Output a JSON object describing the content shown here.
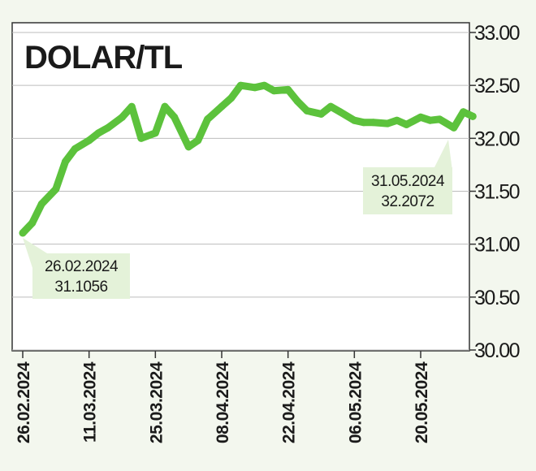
{
  "chart_data": {
    "type": "line",
    "title": "DOLAR/TL",
    "xlabel": "",
    "ylabel": "",
    "ylim": [
      30.0,
      33.0
    ],
    "yticks": [
      "33.00",
      "32.50",
      "32.00",
      "31.50",
      "31.00",
      "30.50",
      "30.00"
    ],
    "xticks": [
      "26.02.2024",
      "11.03.2024",
      "25.03.2024",
      "08.04.2024",
      "22.04.2024",
      "06.05.2024",
      "20.05.2024"
    ],
    "grid": true,
    "line_color": "#5cc23c",
    "series": [
      {
        "x": [
          "26.02.2024",
          "28.02.2024",
          "01.03.2024",
          "04.03.2024",
          "06.03.2024",
          "08.03.2024",
          "11.03.2024",
          "13.03.2024",
          "15.03.2024",
          "18.03.2024",
          "20.03.2024",
          "22.03.2024",
          "25.03.2024",
          "27.03.2024",
          "29.03.2024",
          "01.04.2024",
          "03.04.2024",
          "05.04.2024",
          "08.04.2024",
          "10.04.2024",
          "12.04.2024",
          "15.04.2024",
          "17.04.2024",
          "19.04.2024",
          "22.04.2024",
          "24.04.2024",
          "26.04.2024",
          "29.04.2024",
          "01.05.2024",
          "03.05.2024",
          "06.05.2024",
          "08.05.2024",
          "10.05.2024",
          "13.05.2024",
          "15.05.2024",
          "17.05.2024",
          "20.05.2024",
          "22.05.2024",
          "24.05.2024",
          "27.05.2024",
          "29.05.2024",
          "31.05.2024"
        ],
        "values": [
          31.1056,
          31.2,
          31.38,
          31.52,
          31.78,
          31.9,
          31.98,
          32.05,
          32.1,
          32.2,
          32.3,
          32.0,
          32.05,
          32.3,
          32.2,
          31.92,
          31.98,
          32.18,
          32.3,
          32.38,
          32.5,
          32.48,
          32.5,
          32.45,
          32.46,
          32.35,
          32.26,
          32.23,
          32.3,
          32.25,
          32.17,
          32.15,
          32.15,
          32.14,
          32.17,
          32.13,
          32.2,
          32.17,
          32.18,
          32.1,
          32.25,
          32.2072
        ]
      }
    ],
    "annotations": [
      {
        "date": "26.02.2024",
        "value": "31.1056"
      },
      {
        "date": "31.05.2024",
        "value": "32.2072"
      }
    ]
  }
}
